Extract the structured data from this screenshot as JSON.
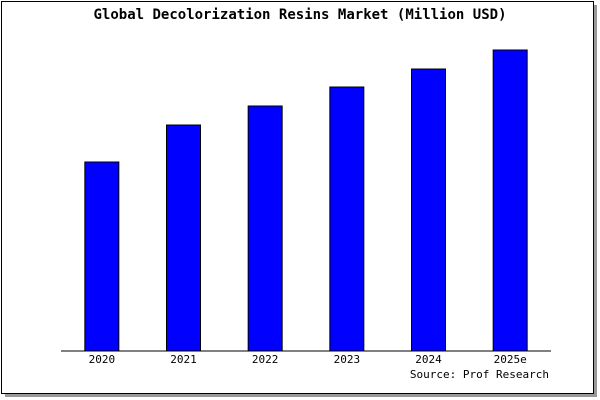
{
  "chart_data": {
    "type": "bar",
    "title": "Global Decolorization Resins Market (Million USD)",
    "categories": [
      "2020",
      "2021",
      "2022",
      "2023",
      "2024",
      "2025e"
    ],
    "values": [
      189,
      226,
      245,
      264,
      282,
      301
    ],
    "color": "#0000ff",
    "ylim": [
      0,
      303
    ],
    "source": "Source: Prof Research"
  }
}
